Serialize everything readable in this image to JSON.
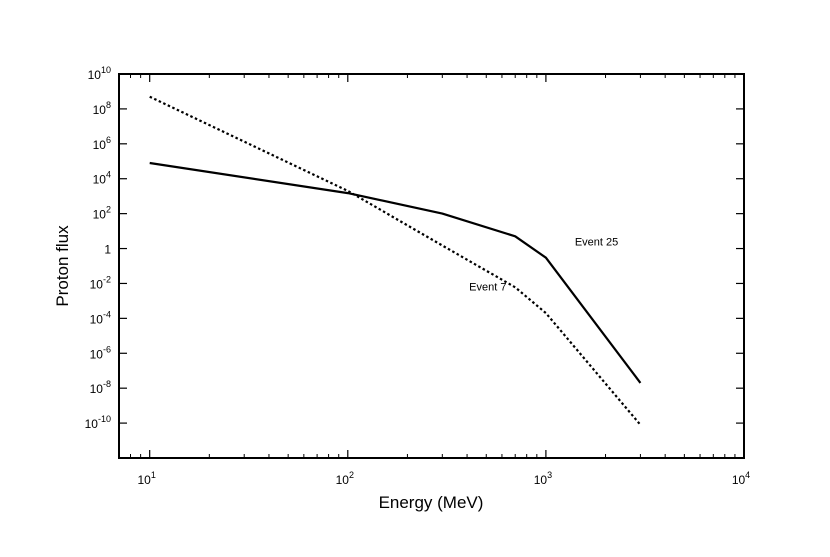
{
  "chart_data": {
    "type": "line",
    "title": "",
    "xlabel": "Energy (MeV)",
    "ylabel": "Proton flux",
    "x_scale": "log",
    "y_scale": "log",
    "xlim": [
      7,
      10000
    ],
    "ylim": [
      1e-12,
      10000000000.0
    ],
    "grid": false,
    "x_ticks": [
      {
        "value": 10,
        "base": "10",
        "exp": "1"
      },
      {
        "value": 100,
        "base": "10",
        "exp": "2"
      },
      {
        "value": 1000,
        "base": "10",
        "exp": "3"
      },
      {
        "value": 10000,
        "base": "10",
        "exp": "4"
      }
    ],
    "y_ticks": [
      {
        "value": 10000000000.0,
        "base": "10",
        "exp": "10"
      },
      {
        "value": 100000000.0,
        "base": "10",
        "exp": "8"
      },
      {
        "value": 1000000.0,
        "base": "10",
        "exp": "6"
      },
      {
        "value": 10000.0,
        "base": "10",
        "exp": "4"
      },
      {
        "value": 100.0,
        "base": "10",
        "exp": "2"
      },
      {
        "value": 1,
        "base": "1",
        "exp": ""
      },
      {
        "value": 0.01,
        "base": "10",
        "exp": "-2"
      },
      {
        "value": 0.0001,
        "base": "10",
        "exp": "-4"
      },
      {
        "value": 1e-06,
        "base": "10",
        "exp": "-6"
      },
      {
        "value": 1e-08,
        "base": "10",
        "exp": "-8"
      },
      {
        "value": 1e-10,
        "base": "10",
        "exp": "-10"
      }
    ],
    "series": [
      {
        "name": "Event 25",
        "style": "solid",
        "x": [
          10,
          100,
          300,
          700,
          1000,
          3000
        ],
        "y": [
          80000.0,
          1500.0,
          100.0,
          5,
          0.3,
          2e-08
        ]
      },
      {
        "name": "Event 7",
        "style": "dotted",
        "x": [
          10,
          100,
          300,
          700,
          1000,
          3000
        ],
        "y": [
          500000000.0,
          2000.0,
          1.5,
          0.006,
          0.0002,
          8e-11
        ]
      }
    ],
    "annotations": [
      {
        "text": "Event 25",
        "x": 1400,
        "y": 1.5
      },
      {
        "text": "Event 7",
        "x": 410,
        "y": 0.004
      }
    ]
  }
}
